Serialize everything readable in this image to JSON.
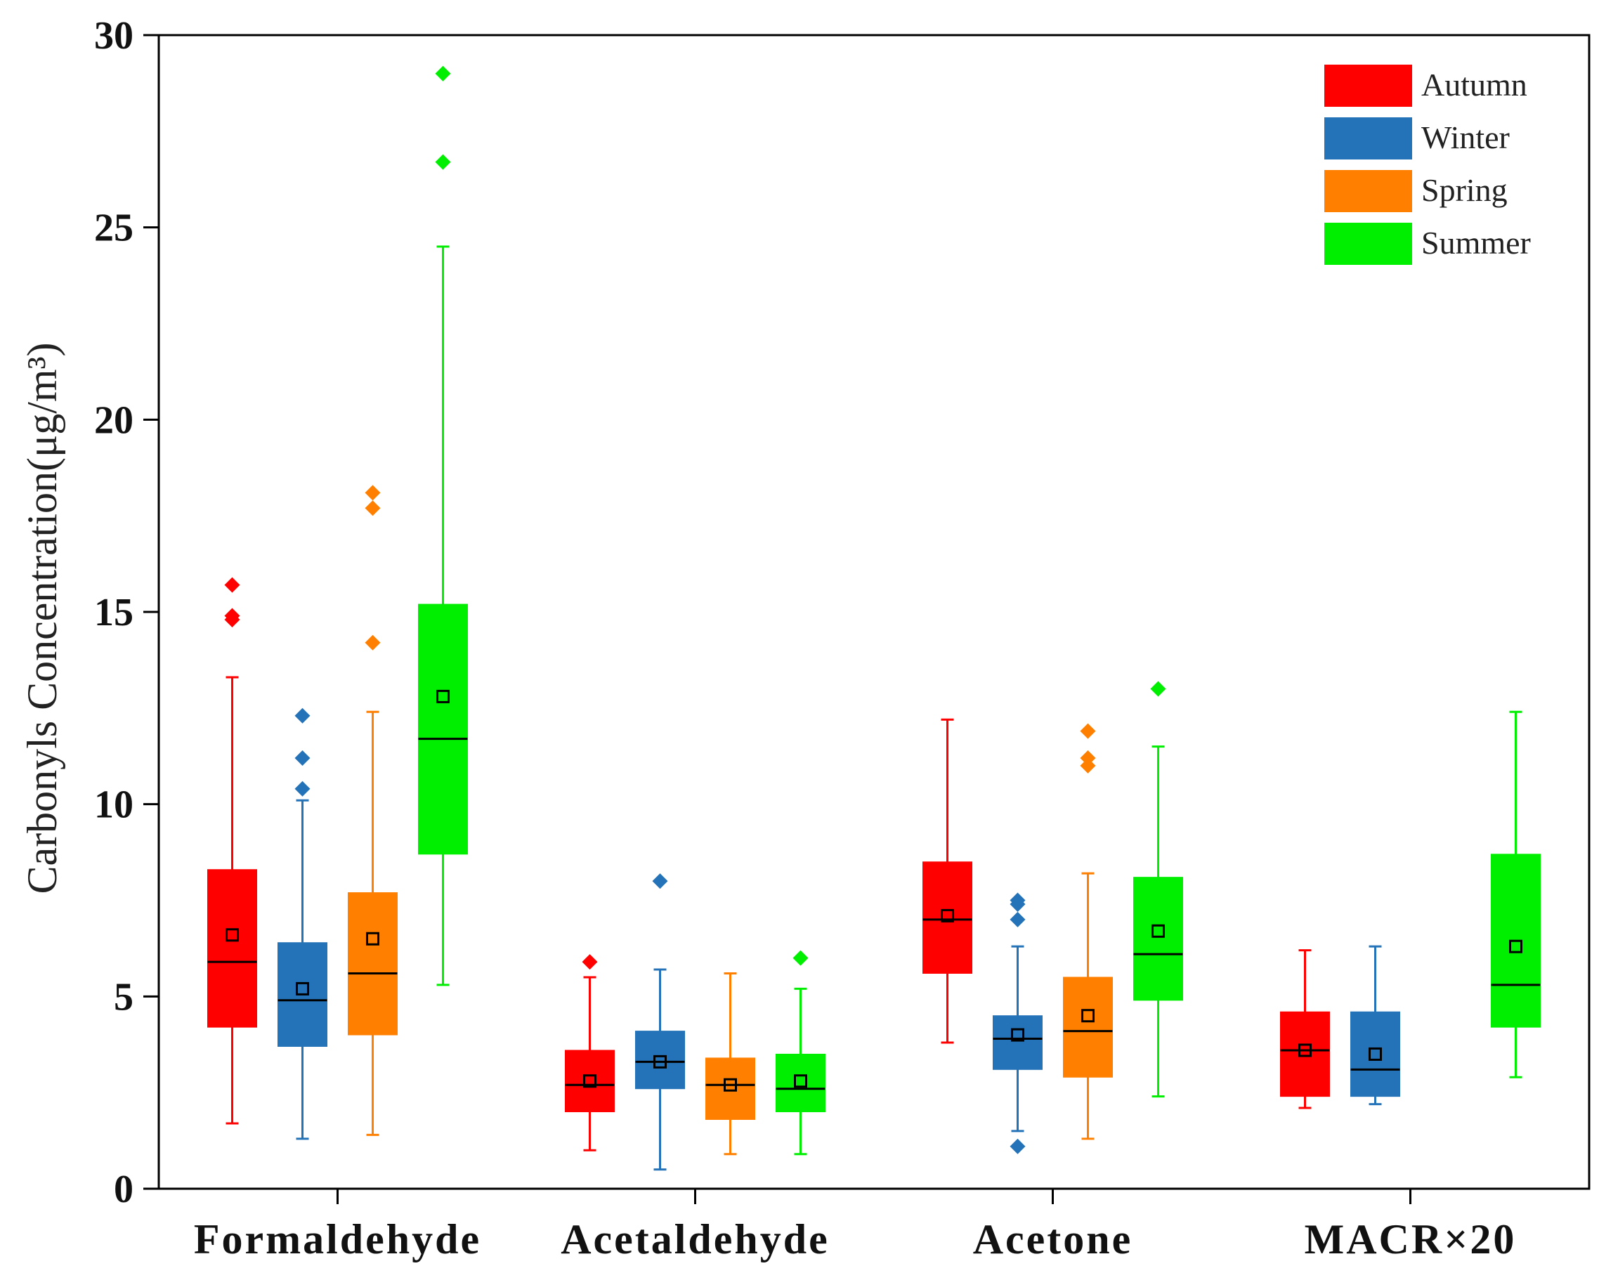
{
  "chart_data": {
    "type": "boxplot",
    "title": "",
    "xlabel": "",
    "ylabel": "Carbonyls Concentration(μg/m³)",
    "ylim": [
      0,
      30
    ],
    "yticks": [
      0,
      5,
      10,
      15,
      20,
      25,
      30
    ],
    "grid": false,
    "legend_position": "top-right",
    "categories": [
      "Formaldehyde",
      "Acetaldehyde",
      "Acetone",
      "MACR×20"
    ],
    "series": [
      {
        "name": "Autumn",
        "color": "#ff0000",
        "boxes": [
          {
            "category": "Formaldehyde",
            "whisker_low": 1.7,
            "q1": 4.2,
            "median": 5.9,
            "q3": 8.3,
            "whisker_high": 13.3,
            "mean": 6.6,
            "outliers": [
              14.8,
              14.9,
              15.7
            ]
          },
          {
            "category": "Acetaldehyde",
            "whisker_low": 1.0,
            "q1": 2.0,
            "median": 2.7,
            "q3": 3.6,
            "whisker_high": 5.5,
            "mean": 2.8,
            "outliers": [
              5.9
            ]
          },
          {
            "category": "Acetone",
            "whisker_low": 3.8,
            "q1": 5.6,
            "median": 7.0,
            "q3": 8.5,
            "whisker_high": 12.2,
            "mean": 7.1,
            "outliers": []
          },
          {
            "category": "MACR×20",
            "whisker_low": 2.1,
            "q1": 2.4,
            "median": 3.6,
            "q3": 4.6,
            "whisker_high": 6.2,
            "mean": 3.6,
            "outliers": []
          }
        ]
      },
      {
        "name": "Winter",
        "color": "#2473b8",
        "boxes": [
          {
            "category": "Formaldehyde",
            "whisker_low": 1.3,
            "q1": 3.7,
            "median": 4.9,
            "q3": 6.4,
            "whisker_high": 10.1,
            "mean": 5.2,
            "outliers": [
              10.4,
              11.2,
              12.3
            ]
          },
          {
            "category": "Acetaldehyde",
            "whisker_low": 0.5,
            "q1": 2.6,
            "median": 3.3,
            "q3": 4.1,
            "whisker_high": 5.7,
            "mean": 3.3,
            "outliers": [
              8.0
            ]
          },
          {
            "category": "Acetone",
            "whisker_low": 1.5,
            "q1": 3.1,
            "median": 3.9,
            "q3": 4.5,
            "whisker_high": 6.3,
            "mean": 4.0,
            "outliers": [
              1.1,
              7.0,
              7.4,
              7.5
            ]
          },
          {
            "category": "MACR×20",
            "whisker_low": 2.2,
            "q1": 2.4,
            "median": 3.1,
            "q3": 4.6,
            "whisker_high": 6.3,
            "mean": 3.5,
            "outliers": []
          }
        ]
      },
      {
        "name": "Spring",
        "color": "#ff8000",
        "boxes": [
          {
            "category": "Formaldehyde",
            "whisker_low": 1.4,
            "q1": 4.0,
            "median": 5.6,
            "q3": 7.7,
            "whisker_high": 12.4,
            "mean": 6.5,
            "outliers": [
              14.2,
              17.7,
              18.1
            ]
          },
          {
            "category": "Acetaldehyde",
            "whisker_low": 0.9,
            "q1": 1.8,
            "median": 2.7,
            "q3": 3.4,
            "whisker_high": 5.6,
            "mean": 2.7,
            "outliers": []
          },
          {
            "category": "Acetone",
            "whisker_low": 1.3,
            "q1": 2.9,
            "median": 4.1,
            "q3": 5.5,
            "whisker_high": 8.2,
            "mean": 4.5,
            "outliers": [
              11.0,
              11.2,
              11.9
            ]
          }
        ]
      },
      {
        "name": "Summer",
        "color": "#00ee00",
        "boxes": [
          {
            "category": "Formaldehyde",
            "whisker_low": 5.3,
            "q1": 8.7,
            "median": 11.7,
            "q3": 15.2,
            "whisker_high": 24.5,
            "mean": 12.8,
            "outliers": [
              26.7,
              29.0
            ]
          },
          {
            "category": "Acetaldehyde",
            "whisker_low": 0.9,
            "q1": 2.0,
            "median": 2.6,
            "q3": 3.5,
            "whisker_high": 5.2,
            "mean": 2.8,
            "outliers": [
              6.0
            ]
          },
          {
            "category": "Acetone",
            "whisker_low": 2.4,
            "q1": 4.9,
            "median": 6.1,
            "q3": 8.1,
            "whisker_high": 11.5,
            "mean": 6.7,
            "outliers": [
              13.0
            ]
          },
          {
            "category": "MACR×20",
            "whisker_low": 2.9,
            "q1": 4.2,
            "median": 5.3,
            "q3": 8.7,
            "whisker_high": 12.4,
            "mean": 6.3,
            "outliers": []
          }
        ]
      }
    ]
  }
}
